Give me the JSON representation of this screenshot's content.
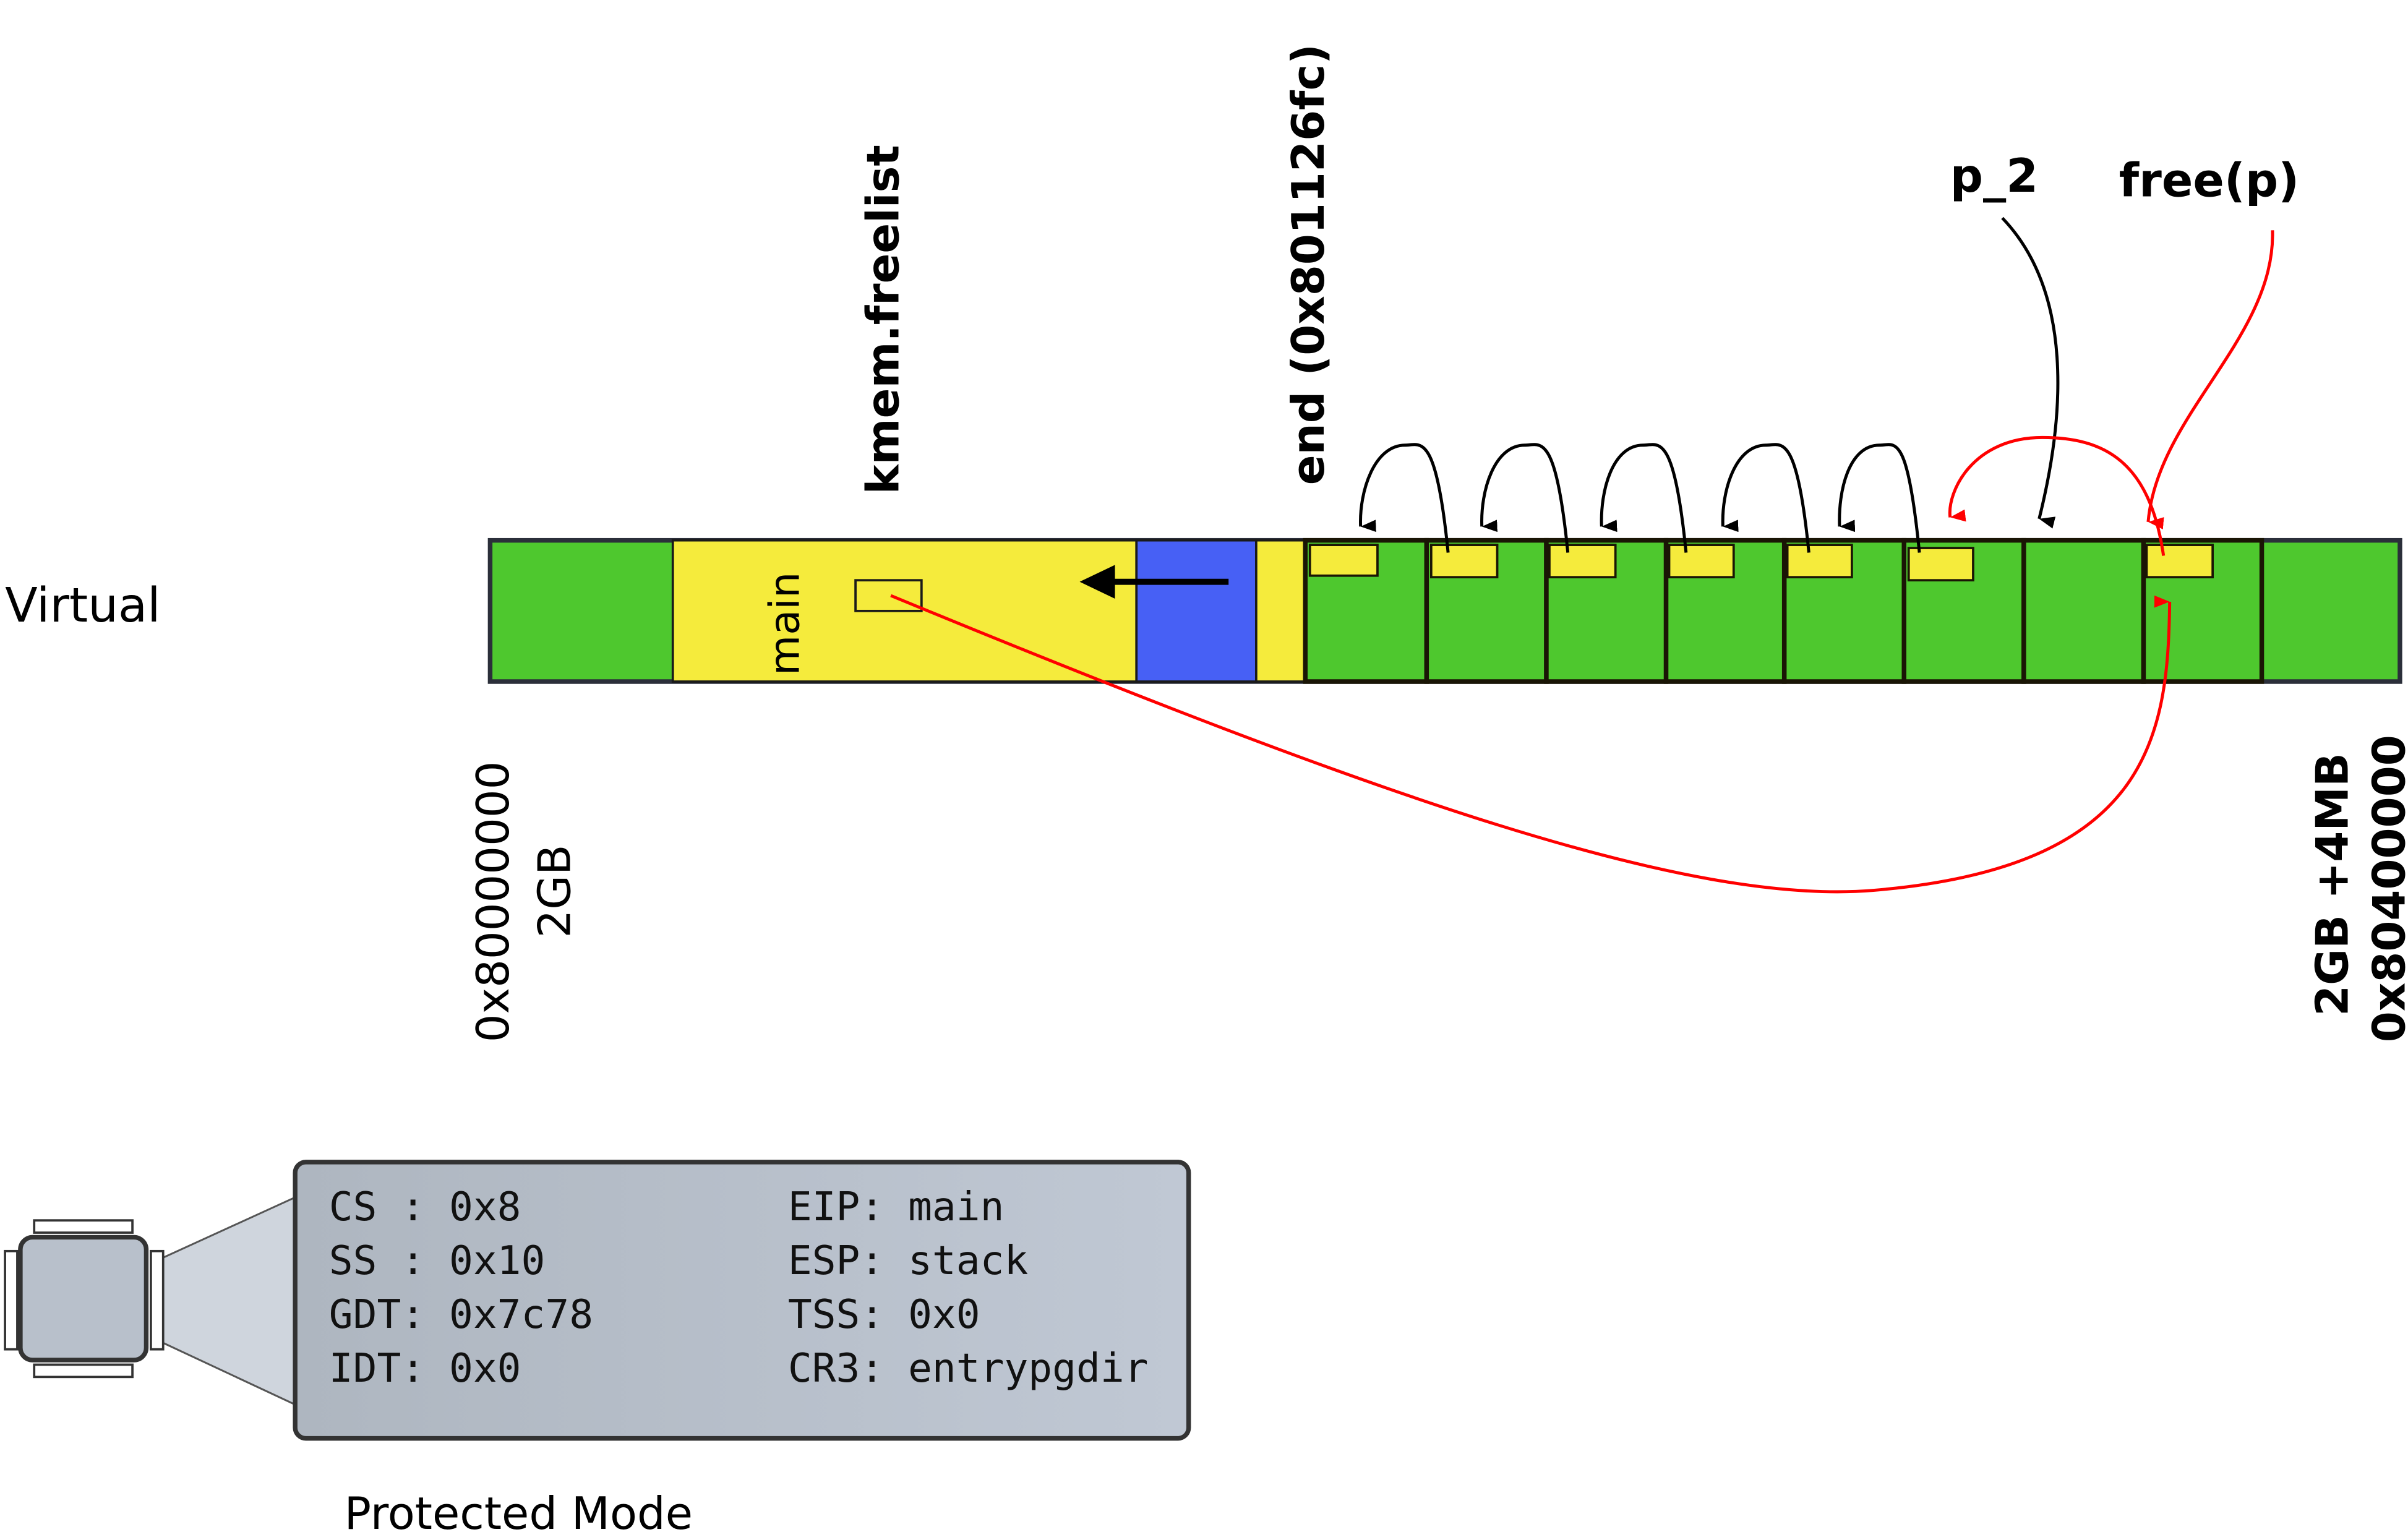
{
  "labels": {
    "virtual": "Virtual",
    "kmem_freelist": "kmem.freelist",
    "end": "end (0x801126fc)",
    "p2": "p_2",
    "free_p": "free(p)",
    "main": "main",
    "start_addr": "0x80000000",
    "start_size": "2GB",
    "end_size": "2GB +4MB",
    "end_addr": "0x80400000",
    "mode": "Protected Mode"
  },
  "registers": {
    "left": [
      {
        "name": "CS ",
        "value": "0x8"
      },
      {
        "name": "SS ",
        "value": "0x10"
      },
      {
        "name": "GDT",
        "value": "0x7c78"
      },
      {
        "name": "IDT",
        "value": "0x0"
      }
    ],
    "right": [
      {
        "name": "EIP",
        "value": "main"
      },
      {
        "name": "ESP",
        "value": "stack"
      },
      {
        "name": "TSS",
        "value": "0x0"
      },
      {
        "name": "CR3",
        "value": "entrypgdir"
      }
    ]
  },
  "colors": {
    "free_memory": "#4ec82e",
    "kernel": "#f5eb3c",
    "stack": "#4760f5",
    "free_arrow": "#ff0000",
    "register_box": "#b8c0cb"
  },
  "icons": {
    "cpu": "cpu-chip-icon"
  }
}
